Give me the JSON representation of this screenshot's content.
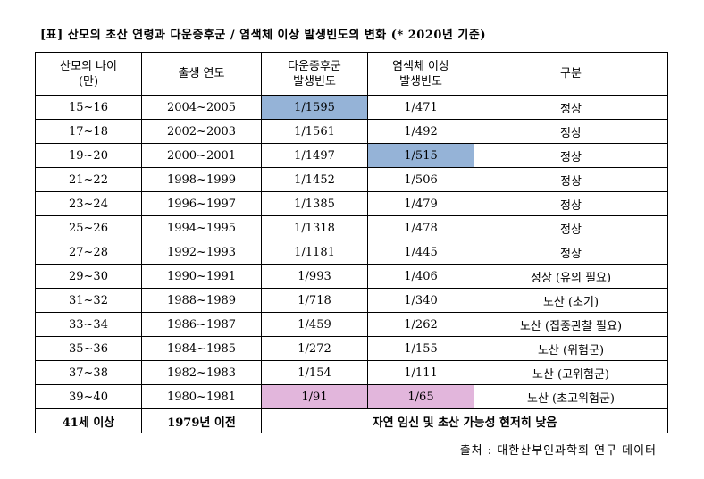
{
  "title": "[표] 산모의 초산 연령과 다운증후군 / 염색체 이상 발생빈도의 변화 (* 2020년 기준)",
  "table": {
    "header": [
      "산모의 나이\n(만)",
      "출생 연도",
      "다운증후군\n발생빈도",
      "염색체 이상\n발생빈도",
      "구분"
    ],
    "rows": [
      [
        "15~16",
        "2004~2005",
        "1/1595",
        "1/471",
        "정상"
      ],
      [
        "17~18",
        "2002~2003",
        "1/1561",
        "1/492",
        "정상"
      ],
      [
        "19~20",
        "2000~2001",
        "1/1497",
        "1/515",
        "정상"
      ],
      [
        "21~22",
        "1998~1999",
        "1/1452",
        "1/506",
        "정상"
      ],
      [
        "23~24",
        "1996~1997",
        "1/1385",
        "1/479",
        "정상"
      ],
      [
        "25~26",
        "1994~1995",
        "1/1318",
        "1/478",
        "정상"
      ],
      [
        "27~28",
        "1992~1993",
        "1/1181",
        "1/445",
        "정상"
      ],
      [
        "29~30",
        "1990~1991",
        "1/993",
        "1/406",
        "정상 (유의 필요)"
      ],
      [
        "31~32",
        "1988~1989",
        "1/718",
        "1/340",
        "노산 (초기)"
      ],
      [
        "33~34",
        "1986~1987",
        "1/459",
        "1/262",
        "노산 (집중관찰 필요)"
      ],
      [
        "35~36",
        "1984~1985",
        "1/272",
        "1/155",
        "노산 (위험군)"
      ],
      [
        "37~38",
        "1982~1983",
        "1/154",
        "1/111",
        "노산 (고위험군)"
      ],
      [
        "39~40",
        "1980~1981",
        "1/91",
        "1/65",
        "노산 (초고위험군)"
      ]
    ],
    "last_row": [
      "41세 이상",
      "1979년 이전",
      "자연 임신 및 초산 가능성 현저히 낮음"
    ]
  },
  "source": "출처 : 대한산부인과학회 연구 데이터"
}
